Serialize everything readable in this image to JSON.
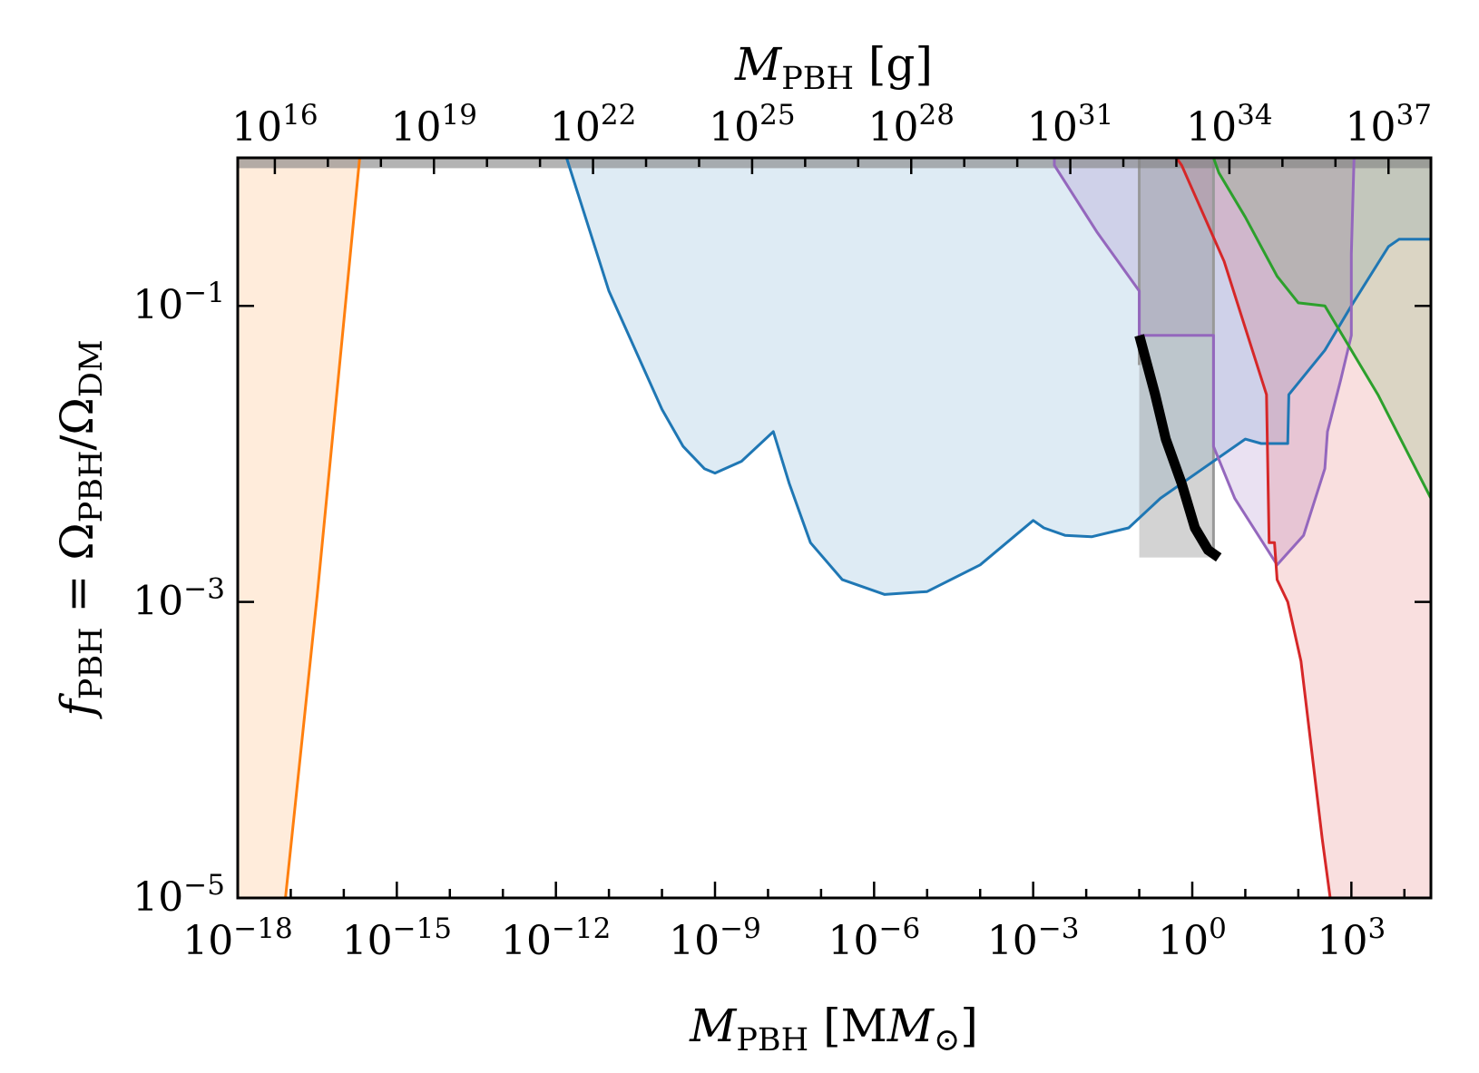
{
  "chart_data": {
    "type": "area",
    "xlabel": {
      "main": "M",
      "sub": "PBH",
      "rest": " [M",
      "sun": "⊙",
      "close": "]"
    },
    "x2label": {
      "main": "M",
      "sub": "PBH",
      "rest": " [g]"
    },
    "ylabel": {
      "f": "f",
      "fsub": "PBH",
      "eq": " = Ω",
      "osub": "PBH",
      "slash": "/Ω",
      "dmsub": "DM"
    },
    "xscale": "log",
    "yscale": "log",
    "xlim_log10": [
      -18,
      4.5
    ],
    "ylim_log10": [
      -5,
      0
    ],
    "x2_offset_log10": 33.3,
    "x_ticks": [
      {
        "base": "10",
        "exp": "−18",
        "log10": -18
      },
      {
        "base": "10",
        "exp": "−15",
        "log10": -15
      },
      {
        "base": "10",
        "exp": "−12",
        "log10": -12
      },
      {
        "base": "10",
        "exp": "−9",
        "log10": -9
      },
      {
        "base": "10",
        "exp": "−6",
        "log10": -6
      },
      {
        "base": "10",
        "exp": "−3",
        "log10": -3
      },
      {
        "base": "10",
        "exp": "0",
        "log10": 0
      },
      {
        "base": "10",
        "exp": "3",
        "log10": 3
      }
    ],
    "x2_ticks": [
      {
        "base": "10",
        "exp": "16",
        "log10": 16
      },
      {
        "base": "10",
        "exp": "19",
        "log10": 19
      },
      {
        "base": "10",
        "exp": "22",
        "log10": 22
      },
      {
        "base": "10",
        "exp": "25",
        "log10": 25
      },
      {
        "base": "10",
        "exp": "28",
        "log10": 28
      },
      {
        "base": "10",
        "exp": "31",
        "log10": 31
      },
      {
        "base": "10",
        "exp": "34",
        "log10": 34
      },
      {
        "base": "10",
        "exp": "37",
        "log10": 37
      }
    ],
    "y_ticks": [
      {
        "base": "10",
        "exp": "−1",
        "log10": -1
      },
      {
        "base": "10",
        "exp": "−3",
        "log10": -3
      },
      {
        "base": "10",
        "exp": "−5",
        "log10": -5
      }
    ],
    "series": [
      {
        "color": "#ff7f0e",
        "fill": "#ff7f0e",
        "fill_opacity": 0.15,
        "fill_side": "left",
        "points_log10": [
          [
            -17.1,
            -5
          ],
          [
            -16.5,
            -2.95
          ],
          [
            -15.7,
            0
          ]
        ]
      },
      {
        "color": "#1f77b4",
        "fill": "#1f77b4",
        "fill_opacity": 0.15,
        "fill_side": "above",
        "points_log10": [
          [
            -11.8,
            0
          ],
          [
            -11.0,
            -0.9
          ],
          [
            -10.0,
            -1.7
          ],
          [
            -9.6,
            -1.95
          ],
          [
            -9.2,
            -2.1
          ],
          [
            -9.0,
            -2.13
          ],
          [
            -8.5,
            -2.05
          ],
          [
            -7.9,
            -1.85
          ],
          [
            -7.6,
            -2.2
          ],
          [
            -7.2,
            -2.6
          ],
          [
            -6.6,
            -2.85
          ],
          [
            -5.8,
            -2.95
          ],
          [
            -5.0,
            -2.93
          ],
          [
            -4.0,
            -2.75
          ],
          [
            -3.0,
            -2.45
          ],
          [
            -2.8,
            -2.5
          ],
          [
            -2.4,
            -2.55
          ],
          [
            -1.9,
            -2.56
          ],
          [
            -1.2,
            -2.5
          ],
          [
            -0.6,
            -2.3
          ],
          [
            0.2,
            -2.1
          ],
          [
            1.0,
            -1.9
          ],
          [
            1.3,
            -1.93
          ],
          [
            1.8,
            -1.93
          ],
          [
            1.82,
            -1.6
          ],
          [
            2.5,
            -1.3
          ],
          [
            3.0,
            -1.0
          ],
          [
            3.7,
            -0.6
          ],
          [
            3.9,
            -0.55
          ],
          [
            4.5,
            -0.55
          ]
        ]
      },
      {
        "color": "#9467bd",
        "fill": "#9467bd",
        "fill_opacity": 0.2,
        "fill_side": "above",
        "points_log10": [
          [
            -2.6,
            0
          ],
          [
            -2.6,
            -0.05
          ],
          [
            -1.8,
            -0.5
          ],
          [
            -1.0,
            -0.9
          ],
          [
            -1.0,
            -1.2
          ],
          [
            0.4,
            -1.2
          ],
          [
            0.4,
            -1.95
          ],
          [
            0.8,
            -2.3
          ],
          [
            1.6,
            -2.75
          ],
          [
            2.1,
            -2.55
          ],
          [
            2.5,
            -2.1
          ],
          [
            2.55,
            -1.85
          ],
          [
            2.8,
            -1.5
          ],
          [
            3.0,
            -1.2
          ],
          [
            3.0,
            -0.65
          ],
          [
            3.05,
            0
          ]
        ]
      },
      {
        "color": "#d62728",
        "fill": "#d62728",
        "fill_opacity": 0.15,
        "fill_side": "right",
        "points_log10": [
          [
            -0.3,
            0
          ],
          [
            -0.2,
            -0.05
          ],
          [
            0.6,
            -0.7
          ],
          [
            1.4,
            -1.6
          ],
          [
            1.45,
            -2.6
          ],
          [
            1.55,
            -2.6
          ],
          [
            1.6,
            -2.85
          ],
          [
            1.8,
            -3.0
          ],
          [
            2.05,
            -3.4
          ],
          [
            2.25,
            -4.0
          ],
          [
            2.45,
            -4.6
          ],
          [
            2.6,
            -5.0
          ],
          [
            4.5,
            -5.0
          ]
        ]
      },
      {
        "color": "#2ca02c",
        "fill": "#2ca02c",
        "fill_opacity": 0.15,
        "fill_side": "right",
        "points_log10": [
          [
            0.4,
            0
          ],
          [
            0.5,
            -0.1
          ],
          [
            1.0,
            -0.4
          ],
          [
            1.6,
            -0.8
          ],
          [
            2.0,
            -0.98
          ],
          [
            2.5,
            -1.0
          ],
          [
            3.5,
            -1.6
          ],
          [
            4.5,
            -2.3
          ]
        ]
      },
      {
        "color": "#000000",
        "width": 11,
        "points_log10": [
          [
            -1.0,
            -1.2
          ],
          [
            -0.7,
            -1.6
          ],
          [
            -0.5,
            -1.9
          ],
          [
            -0.2,
            -2.2
          ],
          [
            0.05,
            -2.5
          ],
          [
            0.3,
            -2.65
          ],
          [
            0.5,
            -2.7
          ]
        ]
      }
    ],
    "grey_band": {
      "color": "#808080",
      "opacity": 0.6,
      "x_range_log10": [
        -18,
        4.5
      ],
      "y_range_log10": [
        -0.07,
        0
      ]
    },
    "grey_box": {
      "color": "#808080",
      "opacity": 0.35,
      "x_range_log10": [
        -1.0,
        0.4
      ],
      "y_range_log10": [
        -5,
        0
      ],
      "stop_y_log10": -2.7
    }
  }
}
